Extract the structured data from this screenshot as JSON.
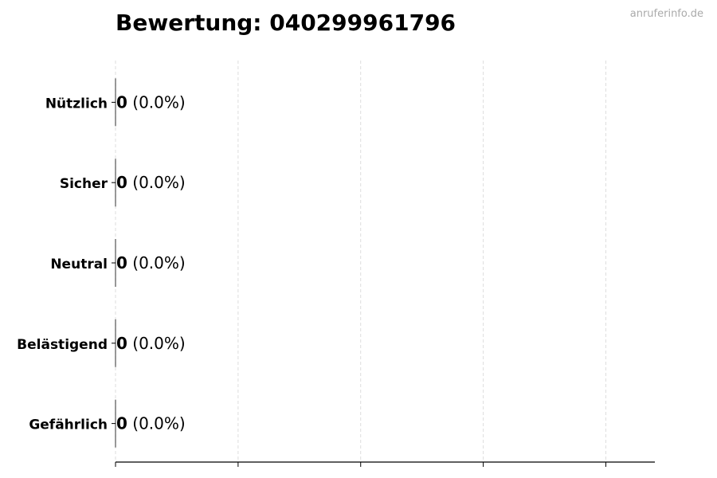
{
  "watermark": "anruferinfo.de",
  "chart_data": {
    "type": "bar",
    "orientation": "horizontal",
    "title": "Bewertung: 040299961796",
    "categories": [
      "Nützlich",
      "Sicher",
      "Neutral",
      "Belästigend",
      "Gefährlich"
    ],
    "values": [
      0,
      0,
      0,
      0,
      0
    ],
    "data_labels": [
      {
        "count": "0",
        "percent": "(0.0%)"
      },
      {
        "count": "0",
        "percent": "(0.0%)"
      },
      {
        "count": "0",
        "percent": "(0.0%)"
      },
      {
        "count": "0",
        "percent": "(0.0%)"
      },
      {
        "count": "0",
        "percent": "(0.0%)"
      }
    ],
    "xlabel": "",
    "ylabel": "",
    "xlim": [
      0,
      4.4
    ],
    "xticks": [
      0,
      1,
      2,
      3,
      4
    ],
    "xtick_labels_shown": false,
    "grid": "x dashed",
    "colors": {
      "bar_edge": "#000000",
      "grid": "#dddddd",
      "watermark": "#aaaaaa"
    }
  }
}
